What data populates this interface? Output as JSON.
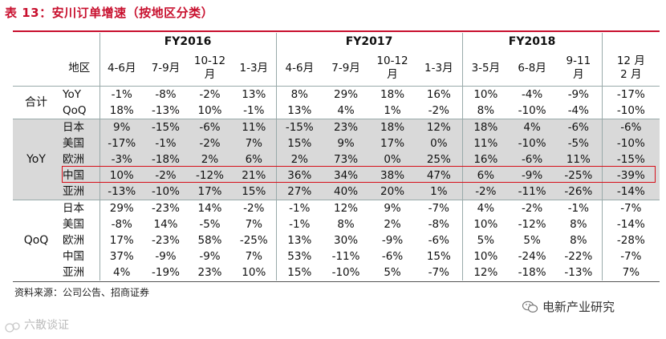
{
  "title": "表 13：安川订单增速（按地区分类）",
  "fiscal_years": [
    "FY2016",
    "FY2017",
    "FY2018"
  ],
  "header": {
    "region_label": "地区",
    "periods": [
      [
        "4-6月"
      ],
      [
        "7-9月"
      ],
      [
        "10-12",
        "月"
      ],
      [
        "1-3月"
      ],
      [
        "4-6月"
      ],
      [
        "7-9月"
      ],
      [
        "10-12",
        "月"
      ],
      [
        "1-3月"
      ],
      [
        "3-5月"
      ],
      [
        "6-8月"
      ],
      [
        "9-11",
        "月"
      ],
      [
        "12 月",
        "2 月"
      ]
    ]
  },
  "sections": [
    {
      "label": "合计",
      "grey": false,
      "rows": [
        {
          "region": "YoY",
          "values": [
            "-1%",
            "-8%",
            "-2%",
            "13%",
            "8%",
            "29%",
            "18%",
            "16%",
            "10%",
            "-4%",
            "-9%",
            "-17%"
          ]
        },
        {
          "region": "QoQ",
          "values": [
            "18%",
            "-13%",
            "10%",
            "-1%",
            "13%",
            "4%",
            "1%",
            "-2%",
            "8%",
            "-10%",
            "-4%",
            "-10%"
          ]
        }
      ]
    },
    {
      "label": "YoY",
      "grey": true,
      "rows": [
        {
          "region": "日本",
          "values": [
            "9%",
            "-15%",
            "-6%",
            "11%",
            "-15%",
            "23%",
            "18%",
            "12%",
            "18%",
            "4%",
            "-6%",
            "-6%"
          ]
        },
        {
          "region": "美国",
          "values": [
            "-17%",
            "-1%",
            "-2%",
            "7%",
            "15%",
            "9%",
            "17%",
            "0%",
            "11%",
            "-10%",
            "-5%",
            "-10%"
          ]
        },
        {
          "region": "欧洲",
          "values": [
            "-3%",
            "-18%",
            "2%",
            "6%",
            "2%",
            "73%",
            "0%",
            "25%",
            "16%",
            "-6%",
            "11%",
            "-15%"
          ]
        },
        {
          "region": "中国",
          "values": [
            "10%",
            "-2%",
            "-12%",
            "21%",
            "36%",
            "34%",
            "38%",
            "47%",
            "6%",
            "-9%",
            "-25%",
            "-39%"
          ]
        },
        {
          "region": "亚洲",
          "values": [
            "-13%",
            "-10%",
            "17%",
            "15%",
            "27%",
            "40%",
            "20%",
            "1%",
            "-2%",
            "-11%",
            "-26%",
            "-14%"
          ]
        }
      ]
    },
    {
      "label": "QoQ",
      "grey": false,
      "rows": [
        {
          "region": "日本",
          "values": [
            "29%",
            "-23%",
            "14%",
            "-2%",
            "-1%",
            "12%",
            "9%",
            "-7%",
            "4%",
            "-2%",
            "-1%",
            "-7%"
          ]
        },
        {
          "region": "美国",
          "values": [
            "-8%",
            "14%",
            "-5%",
            "7%",
            "-1%",
            "8%",
            "2%",
            "-8%",
            "10%",
            "-12%",
            "8%",
            "-14%"
          ]
        },
        {
          "region": "欧洲",
          "values": [
            "17%",
            "-23%",
            "58%",
            "-25%",
            "13%",
            "30%",
            "-9%",
            "-6%",
            "5%",
            "5%",
            "8%",
            "-28%"
          ]
        },
        {
          "region": "中国",
          "values": [
            "37%",
            "-9%",
            "-9%",
            "7%",
            "53%",
            "-11%",
            "-6%",
            "15%",
            "10%",
            "-24%",
            "-22%",
            "-7%"
          ]
        },
        {
          "region": "亚洲",
          "values": [
            "4%",
            "-19%",
            "23%",
            "10%",
            "15%",
            "-10%",
            "5%",
            "-7%",
            "12%",
            "-18%",
            "-13%",
            "7%"
          ]
        }
      ]
    }
  ],
  "source": "资料来源：公司公告、招商证券",
  "brand": "电新产业研究",
  "watermark": "六散谈证",
  "colors": {
    "accent": "#c8102e",
    "grey_band": "#d9d9d9"
  }
}
